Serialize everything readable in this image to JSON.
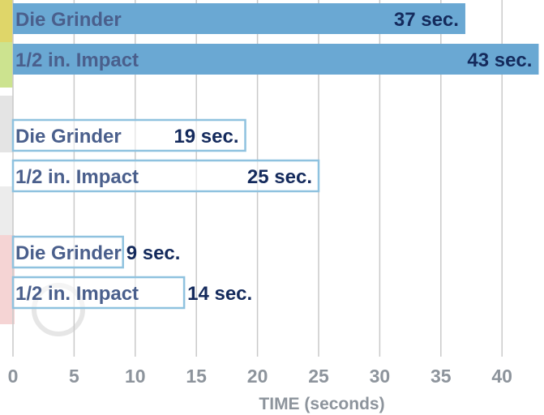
{
  "chart_data": {
    "type": "bar",
    "orientation": "horizontal",
    "xlabel": "TIME (seconds)",
    "xlim": [
      0,
      43.5
    ],
    "xticks": [
      0,
      5,
      10,
      15,
      20,
      25,
      30,
      35,
      40
    ],
    "grid": true,
    "bars": [
      {
        "category": "Die Grinder",
        "value": 37,
        "label": "37 sec.",
        "style": "filled",
        "group": 1
      },
      {
        "category": "1/2 in. Impact",
        "value": 43,
        "label": "43 sec.",
        "style": "filled",
        "group": 1
      },
      {
        "category": "Die Grinder",
        "value": 19,
        "label": "19 sec.",
        "style": "outline",
        "group": 2
      },
      {
        "category": "1/2 in. Impact",
        "value": 25,
        "label": "25 sec.",
        "style": "outline",
        "group": 2
      },
      {
        "category": "Die Grinder",
        "value": 9,
        "label": "9 sec.",
        "style": "outline",
        "group": 3
      },
      {
        "category": "1/2 in. Impact",
        "value": 14,
        "label": "14 sec.",
        "style": "outline",
        "group": 3
      }
    ],
    "colors": {
      "bar_fill": "#6aa8d3",
      "bar_outline": "#8fc2df",
      "category_text": "#4a5f8c",
      "value_text": "#142a5c",
      "grid": "#c9c9c9",
      "tick_text": "#8d949c",
      "axis_title": "#8d949c"
    }
  }
}
